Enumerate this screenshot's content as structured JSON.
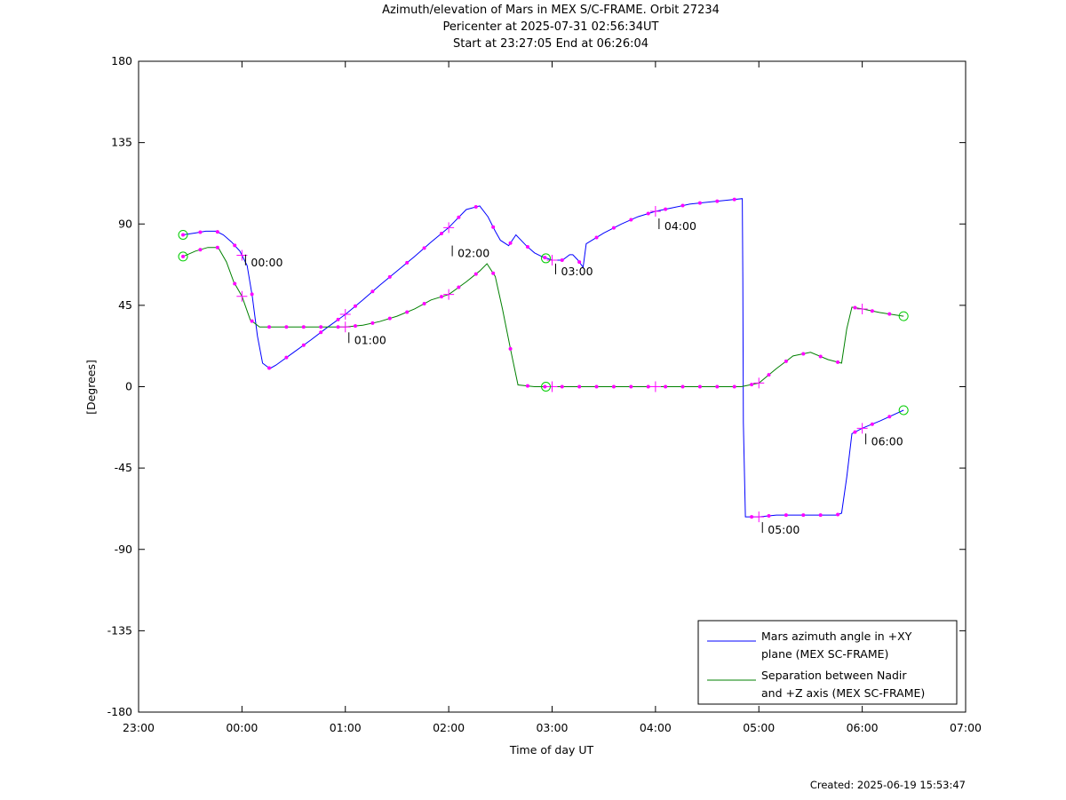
{
  "chart_data": {
    "type": "line",
    "title": "Azimuth/elevation of Mars in MEX S/C-FRAME.  Orbit 27234",
    "subtitle_lines": [
      "Pericenter at 2025-07-31 02:56:34UT",
      "Start at 23:27:05 End at 06:26:04"
    ],
    "xlabel": "Time of day UT",
    "ylabel": "[Degrees]",
    "x_unit": "hours since 23:00 UT",
    "xlim": [
      0,
      8
    ],
    "ylim": [
      -180,
      180
    ],
    "x_tick_labels": [
      "23:00",
      "00:00",
      "01:00",
      "02:00",
      "03:00",
      "04:00",
      "05:00",
      "06:00",
      "07:00"
    ],
    "y_ticks": [
      -180,
      -135,
      -90,
      -45,
      0,
      45,
      90,
      135,
      180
    ],
    "legend_position": "bottom-right",
    "hour_annotations": [
      {
        "label": "00:00",
        "x": 1.0,
        "y": 76
      },
      {
        "label": "01:00",
        "x": 2.0,
        "y": 33
      },
      {
        "label": "02:00",
        "x": 3.0,
        "y": 81
      },
      {
        "label": "03:00",
        "x": 4.0,
        "y": 71
      },
      {
        "label": "04:00",
        "x": 5.0,
        "y": 96
      },
      {
        "label": "05:00",
        "x": 6.0,
        "y": -72
      },
      {
        "label": "06:00",
        "x": 7.0,
        "y": -23
      }
    ],
    "series": [
      {
        "name": "Mars azimuth angle in +XY plane (MEX SC-FRAME)",
        "legend_lines": [
          "Mars azimuth angle in +XY",
          "plane (MEX SC-FRAME)"
        ],
        "color": "#0000ff",
        "x": [
          0.43,
          0.55,
          0.65,
          0.75,
          0.82,
          0.9,
          0.98,
          1.05,
          1.1,
          1.15,
          1.2,
          1.27,
          1.33,
          1.5,
          1.67,
          1.83,
          2.0,
          2.17,
          2.33,
          2.5,
          2.67,
          2.83,
          3.0,
          3.17,
          3.3,
          3.38,
          3.45,
          3.5,
          3.58,
          3.65,
          3.75,
          3.83,
          3.9,
          4.0,
          4.1,
          4.17,
          4.2,
          4.25,
          4.3,
          4.33,
          4.5,
          4.67,
          4.83,
          5.0,
          5.17,
          5.33,
          5.5,
          5.67,
          5.84,
          5.845,
          5.85,
          5.87,
          6.0,
          6.17,
          6.33,
          6.5,
          6.67,
          6.75,
          6.8,
          6.85,
          6.9,
          7.0,
          7.17,
          7.4
        ],
        "y": [
          84,
          85,
          86,
          86,
          84,
          80,
          75,
          67,
          50,
          28,
          13,
          10,
          12,
          19,
          26,
          33,
          40,
          48,
          56,
          64,
          72,
          80,
          88,
          98,
          100,
          94,
          86,
          81,
          78,
          84,
          78,
          74,
          72,
          70,
          70,
          73,
          73,
          70,
          66,
          79,
          85,
          90,
          94,
          97,
          99,
          101,
          102,
          103,
          104,
          60,
          -20,
          -72,
          -72,
          -71,
          -71,
          -71,
          -71,
          -71,
          -70,
          -50,
          -26,
          -23,
          -19,
          -13
        ]
      },
      {
        "name": "Separation between Nadir and +Z axis (MEX SC-FRAME)",
        "legend_lines": [
          "Separation between Nadir",
          "and +Z axis (MEX SC-FRAME)"
        ],
        "color": "#008000",
        "x": [
          0.43,
          0.55,
          0.67,
          0.77,
          0.85,
          0.92,
          1.0,
          1.08,
          1.17,
          1.25,
          1.33,
          1.5,
          1.67,
          1.83,
          2.0,
          2.17,
          2.33,
          2.5,
          2.67,
          2.83,
          3.0,
          3.17,
          3.3,
          3.37,
          3.45,
          3.52,
          3.6,
          3.67,
          3.83,
          4.0,
          4.17,
          4.33,
          4.5,
          4.67,
          4.83,
          5.0,
          5.17,
          5.33,
          5.5,
          5.67,
          5.83,
          6.0,
          6.17,
          6.33,
          6.5,
          6.67,
          6.8,
          6.85,
          6.9,
          7.0,
          7.17,
          7.4
        ],
        "y": [
          72,
          75,
          77,
          77,
          69,
          58,
          50,
          37,
          33,
          33,
          33,
          33,
          33,
          33,
          33,
          34,
          36,
          39,
          43,
          48,
          51,
          58,
          64,
          68,
          61,
          43,
          20,
          1,
          0,
          0,
          0,
          0,
          0,
          0,
          0,
          0,
          0,
          0,
          0,
          0,
          0,
          2,
          10,
          17,
          19,
          15,
          13,
          32,
          44,
          43,
          41,
          39
        ]
      }
    ]
  },
  "footer": {
    "created": "Created: 2025-06-19 15:53:47"
  }
}
